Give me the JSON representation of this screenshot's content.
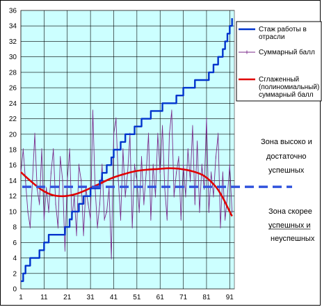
{
  "chart_data": {
    "type": "line",
    "x_ticks": [
      1,
      11,
      21,
      31,
      41,
      51,
      61,
      71,
      81,
      91
    ],
    "xlim": [
      1,
      93
    ],
    "ylim": [
      0,
      36
    ],
    "y_ticks": [
      0,
      2,
      4,
      6,
      8,
      10,
      12,
      14,
      16,
      18,
      20,
      22,
      24,
      26,
      28,
      30,
      32,
      34,
      36
    ],
    "grid": true,
    "legend": "right",
    "threshold": 13.2,
    "zone_labels": {
      "upper": [
        "Зона высоко и",
        "достаточно",
        "успешных"
      ],
      "lower": [
        "Зона скорее",
        "успешных и",
        "неуспешных"
      ]
    },
    "series": [
      {
        "name": "Стаж работы в отрасли",
        "legend_lines": [
          "Стаж работы в",
          "отрасли"
        ],
        "color": "#0033cc",
        "x": [
          1,
          2,
          3,
          4,
          5,
          6,
          7,
          8,
          9,
          10,
          11,
          12,
          13,
          14,
          15,
          16,
          17,
          18,
          19,
          20,
          21,
          22,
          23,
          24,
          25,
          26,
          27,
          28,
          29,
          30,
          31,
          32,
          33,
          34,
          35,
          36,
          37,
          38,
          39,
          40,
          41,
          42,
          43,
          44,
          45,
          46,
          47,
          48,
          49,
          50,
          51,
          52,
          53,
          54,
          55,
          56,
          57,
          58,
          59,
          60,
          61,
          62,
          63,
          64,
          65,
          66,
          67,
          68,
          69,
          70,
          71,
          72,
          73,
          74,
          75,
          76,
          77,
          78,
          79,
          80,
          81,
          82,
          83,
          84,
          85,
          86,
          87,
          88,
          89,
          90,
          91,
          92
        ],
        "values": [
          1,
          2,
          3,
          3,
          4,
          4,
          4,
          4,
          5,
          5,
          6,
          6,
          7,
          7,
          7,
          7,
          7,
          7,
          7,
          8,
          8,
          9,
          10,
          10,
          10,
          11,
          11,
          12,
          12,
          12,
          13,
          13,
          13,
          13,
          14,
          15,
          15,
          16,
          16,
          17,
          18,
          18,
          18,
          19,
          19,
          20,
          20,
          20,
          20,
          21,
          21,
          21,
          22,
          22,
          22,
          22,
          23,
          23,
          23,
          23,
          23,
          24,
          24,
          24,
          24,
          24,
          24,
          25,
          25,
          25,
          26,
          26,
          26,
          26,
          26,
          27,
          27,
          27,
          27,
          27,
          27,
          28,
          28,
          29,
          29,
          30,
          30,
          31,
          32,
          33,
          34,
          35
        ]
      },
      {
        "name": "Суммарный балл",
        "legend_lines": [
          "Суммарный балл"
        ],
        "color": "#7a2a8a",
        "x": [
          1,
          2,
          3,
          4,
          5,
          6,
          7,
          8,
          9,
          10,
          11,
          12,
          13,
          14,
          15,
          16,
          17,
          18,
          19,
          20,
          21,
          22,
          23,
          24,
          25,
          26,
          27,
          28,
          29,
          30,
          31,
          32,
          33,
          34,
          35,
          36,
          37,
          38,
          39,
          40,
          41,
          42,
          43,
          44,
          45,
          46,
          47,
          48,
          49,
          50,
          51,
          52,
          53,
          54,
          55,
          56,
          57,
          58,
          59,
          60,
          61,
          62,
          63,
          64,
          65,
          66,
          67,
          68,
          69,
          70,
          71,
          72,
          73,
          74,
          75,
          76,
          77,
          78,
          79,
          80,
          81,
          82,
          83,
          84,
          85,
          86,
          87,
          88,
          89,
          90,
          91,
          92
        ],
        "values": [
          15,
          18,
          14,
          10,
          8,
          14,
          20,
          13,
          11,
          18,
          9,
          13,
          10,
          15,
          18,
          11,
          8,
          17,
          14,
          5,
          14,
          18,
          9,
          12,
          7,
          16,
          14,
          7,
          13,
          11,
          9,
          23,
          13,
          8,
          11,
          16,
          9,
          10,
          13,
          4,
          20,
          22,
          14,
          9,
          18,
          12,
          15,
          20,
          8,
          16,
          14,
          10,
          17,
          11,
          15,
          20,
          9,
          16,
          12,
          20,
          15,
          21,
          13,
          9,
          20,
          23,
          12,
          15,
          17,
          9,
          16,
          12,
          18,
          14,
          21,
          11,
          19,
          10,
          16,
          13,
          22,
          10,
          15,
          12,
          17,
          20,
          8,
          15,
          9,
          12,
          16,
          10
        ]
      },
      {
        "name": "Сглаженный (полиномиальный) суммарный балл",
        "legend_lines": [
          "Сглаженный",
          "(полиномиальный)",
          "суммарный балл"
        ],
        "color": "#e00000",
        "x": [
          1,
          5,
          10,
          15,
          20,
          25,
          30,
          35,
          40,
          45,
          50,
          55,
          60,
          65,
          70,
          75,
          80,
          85,
          88,
          90,
          92
        ],
        "values": [
          15.1,
          14.0,
          12.8,
          12.1,
          12.0,
          12.3,
          12.9,
          13.6,
          14.3,
          14.8,
          15.2,
          15.4,
          15.5,
          15.6,
          15.5,
          15.2,
          14.6,
          13.2,
          11.8,
          10.6,
          9.4
        ]
      }
    ]
  }
}
